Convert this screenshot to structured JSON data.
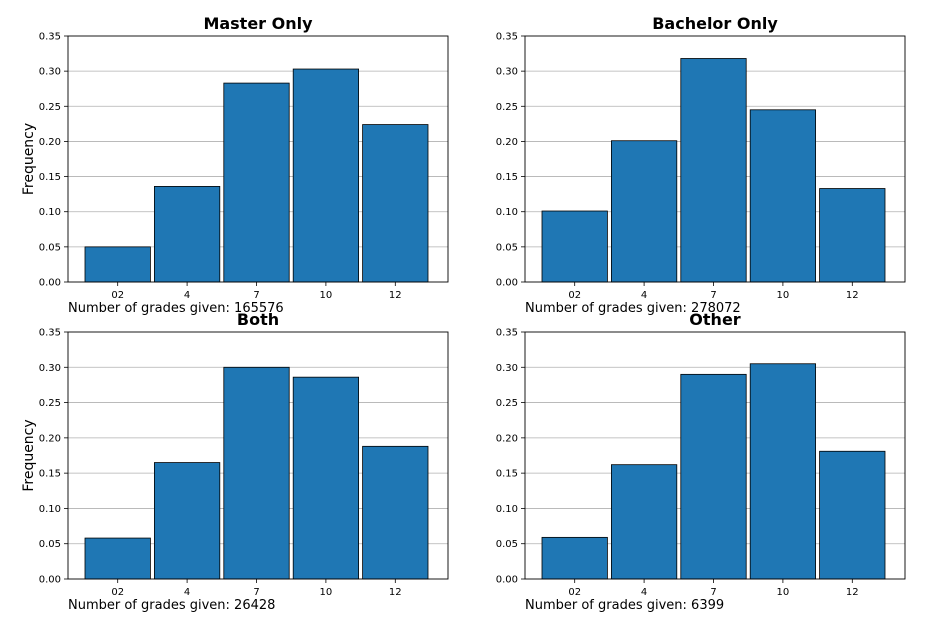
{
  "chart_data": [
    {
      "type": "bar",
      "title": "Master Only",
      "ylabel": "Frequency",
      "categories": [
        "02",
        "4",
        "7",
        "10",
        "12"
      ],
      "values": [
        0.05,
        0.136,
        0.283,
        0.303,
        0.224
      ],
      "ylim": [
        0,
        0.35
      ],
      "yticks": [
        "0.00",
        "0.05",
        "0.10",
        "0.15",
        "0.20",
        "0.25",
        "0.30",
        "0.35"
      ],
      "grid": "horizontal",
      "bar_color": "#1f77b4",
      "annotation": "Number of grades given: 165576"
    },
    {
      "type": "bar",
      "title": "Bachelor Only",
      "ylabel": "",
      "categories": [
        "02",
        "4",
        "7",
        "10",
        "12"
      ],
      "values": [
        0.101,
        0.201,
        0.318,
        0.245,
        0.133
      ],
      "ylim": [
        0,
        0.35
      ],
      "yticks": [
        "0.00",
        "0.05",
        "0.10",
        "0.15",
        "0.20",
        "0.25",
        "0.30",
        "0.35"
      ],
      "grid": "horizontal",
      "bar_color": "#1f77b4",
      "annotation": "Number of grades given: 278072"
    },
    {
      "type": "bar",
      "title": "Both",
      "ylabel": "Frequency",
      "categories": [
        "02",
        "4",
        "7",
        "10",
        "12"
      ],
      "values": [
        0.058,
        0.165,
        0.3,
        0.286,
        0.188
      ],
      "ylim": [
        0,
        0.35
      ],
      "yticks": [
        "0.00",
        "0.05",
        "0.10",
        "0.15",
        "0.20",
        "0.25",
        "0.30",
        "0.35"
      ],
      "grid": "horizontal",
      "bar_color": "#1f77b4",
      "annotation": "Number of grades given: 26428"
    },
    {
      "type": "bar",
      "title": "Other",
      "ylabel": "",
      "categories": [
        "02",
        "4",
        "7",
        "10",
        "12"
      ],
      "values": [
        0.059,
        0.162,
        0.29,
        0.305,
        0.181
      ],
      "ylim": [
        0,
        0.35
      ],
      "yticks": [
        "0.00",
        "0.05",
        "0.10",
        "0.15",
        "0.20",
        "0.25",
        "0.30",
        "0.35"
      ],
      "grid": "horizontal",
      "bar_color": "#1f77b4",
      "annotation": "Number of grades given: 6399"
    }
  ]
}
